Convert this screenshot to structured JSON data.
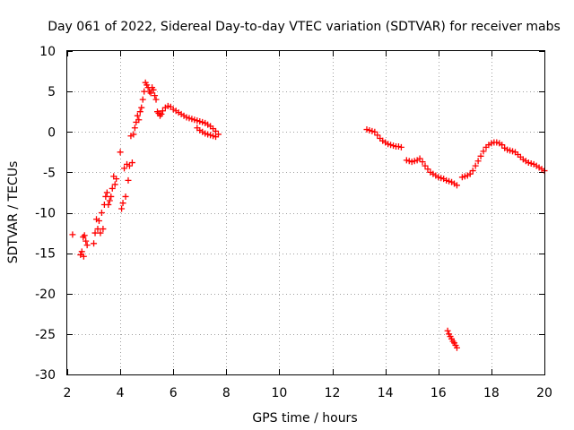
{
  "chart_data": {
    "type": "scatter",
    "title": "Day 061 of 2022, Sidereal Day-to-day VTEC variation (SDTVAR) for receiver mabs",
    "xlabel": "GPS time / hours",
    "ylabel": "SDTVAR / TECUs",
    "xlim": [
      2,
      20
    ],
    "ylim": [
      -30,
      10
    ],
    "x_ticks": [
      2,
      4,
      6,
      8,
      10,
      12,
      14,
      16,
      18,
      20
    ],
    "y_ticks": [
      -30,
      -25,
      -20,
      -15,
      -10,
      -5,
      0,
      5,
      10
    ],
    "x_tick_labels": [
      "2",
      "4",
      "6",
      "8",
      "10",
      "12",
      "14",
      "16",
      "18",
      "20"
    ],
    "y_tick_labels": [
      "-30",
      "-25",
      "-20",
      "-15",
      "-10",
      "-5",
      "0",
      "5",
      "10"
    ],
    "grid": true,
    "marker": "plus",
    "series": [
      {
        "name": "SDTVAR",
        "color": "#ff0000",
        "x": [
          2.2,
          2.5,
          2.55,
          2.6,
          2.62,
          2.65,
          2.7,
          2.75,
          3.0,
          3.05,
          3.1,
          3.15,
          3.2,
          3.25,
          3.3,
          3.35,
          3.4,
          3.45,
          3.5,
          3.55,
          3.6,
          3.65,
          3.7,
          3.75,
          3.8,
          3.85,
          4.0,
          4.05,
          4.1,
          4.15,
          4.2,
          4.25,
          4.3,
          4.35,
          4.4,
          4.45,
          4.5,
          4.55,
          4.6,
          4.65,
          4.7,
          4.75,
          4.8,
          4.85,
          4.9,
          4.95,
          5.0,
          5.05,
          5.1,
          5.15,
          5.2,
          5.25,
          5.3,
          5.35,
          5.4,
          5.45,
          5.5,
          5.55,
          5.6,
          5.7,
          5.8,
          5.9,
          6.0,
          6.1,
          6.2,
          6.3,
          6.4,
          6.5,
          6.6,
          6.7,
          6.8,
          6.9,
          7.0,
          7.1,
          7.2,
          7.3,
          7.4,
          7.5,
          7.6,
          7.7,
          6.9,
          7.0,
          7.1,
          7.2,
          7.3,
          7.4,
          7.5,
          7.6,
          13.3,
          13.4,
          13.5,
          13.6,
          13.7,
          13.8,
          13.9,
          14.0,
          14.1,
          14.2,
          14.3,
          14.4,
          14.5,
          14.6,
          14.8,
          14.9,
          15.0,
          15.1,
          15.2,
          15.3,
          15.4,
          15.5,
          15.6,
          15.7,
          15.8,
          15.9,
          16.0,
          16.1,
          16.2,
          16.3,
          16.4,
          16.5,
          16.6,
          16.7,
          16.35,
          16.4,
          16.45,
          16.5,
          16.55,
          16.6,
          16.65,
          16.7,
          16.9,
          17.0,
          17.1,
          17.2,
          17.3,
          17.4,
          17.5,
          17.6,
          17.7,
          17.8,
          17.9,
          18.0,
          18.1,
          18.2,
          18.3,
          18.4,
          18.5,
          18.6,
          18.7,
          18.8,
          18.9,
          19.0,
          19.1,
          19.2,
          19.3,
          19.4,
          19.5,
          19.6,
          19.7,
          19.8,
          19.9,
          20.0
        ],
        "y": [
          -12.7,
          -15.2,
          -14.8,
          -13.0,
          -15.4,
          -12.8,
          -13.5,
          -14.0,
          -13.8,
          -12.5,
          -10.8,
          -12.0,
          -11.0,
          -12.5,
          -10.0,
          -12.0,
          -9.0,
          -8.0,
          -7.5,
          -9.0,
          -8.5,
          -8.0,
          -7.0,
          -5.5,
          -6.5,
          -5.8,
          -2.5,
          -9.5,
          -8.8,
          -4.5,
          -8.0,
          -4.0,
          -6.0,
          -4.2,
          -0.5,
          -3.8,
          -0.3,
          0.5,
          1.2,
          2.0,
          1.5,
          2.5,
          3.0,
          4.0,
          5.0,
          6.1,
          5.8,
          5.5,
          5.0,
          4.8,
          5.5,
          5.2,
          4.5,
          4.0,
          2.5,
          2.3,
          2.0,
          2.2,
          2.6,
          3.0,
          3.2,
          3.1,
          2.8,
          2.6,
          2.4,
          2.2,
          2.0,
          1.8,
          1.7,
          1.6,
          1.5,
          1.4,
          1.3,
          1.2,
          1.1,
          0.9,
          0.7,
          0.4,
          0.1,
          -0.3,
          0.5,
          0.2,
          0.0,
          -0.2,
          -0.3,
          -0.4,
          -0.5,
          -0.6,
          0.3,
          0.2,
          0.1,
          0.0,
          -0.4,
          -0.8,
          -1.1,
          -1.3,
          -1.5,
          -1.6,
          -1.7,
          -1.8,
          -1.8,
          -1.9,
          -3.5,
          -3.6,
          -3.7,
          -3.6,
          -3.5,
          -3.3,
          -3.7,
          -4.2,
          -4.6,
          -5.0,
          -5.2,
          -5.4,
          -5.6,
          -5.7,
          -5.8,
          -6.0,
          -6.1,
          -6.2,
          -6.4,
          -6.6,
          -24.6,
          -25.0,
          -25.3,
          -25.6,
          -25.9,
          -26.1,
          -26.4,
          -26.7,
          -5.6,
          -5.5,
          -5.4,
          -5.2,
          -4.8,
          -4.2,
          -3.6,
          -3.0,
          -2.4,
          -1.9,
          -1.6,
          -1.4,
          -1.3,
          -1.3,
          -1.4,
          -1.6,
          -2.0,
          -2.2,
          -2.3,
          -2.4,
          -2.5,
          -2.8,
          -3.1,
          -3.4,
          -3.6,
          -3.8,
          -3.9,
          -4.0,
          -4.2,
          -4.4,
          -4.6,
          -4.8
        ]
      }
    ]
  }
}
